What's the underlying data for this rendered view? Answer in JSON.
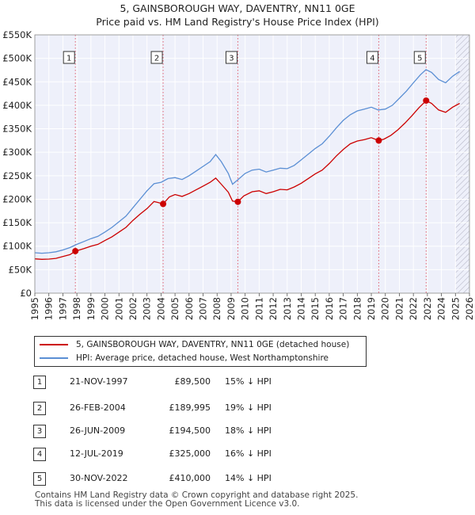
{
  "chart_data": {
    "type": "line",
    "title": "5, GAINSBOROUGH WAY, DAVENTRY, NN11 0GE",
    "subtitle": "Price paid vs. HM Land Registry's House Price Index (HPI)",
    "x_range": [
      1995,
      2026
    ],
    "ylim": [
      0,
      550000
    ],
    "y_ticks": [
      {
        "value": 0,
        "label": "£0"
      },
      {
        "value": 50000,
        "label": "£50K"
      },
      {
        "value": 100000,
        "label": "£100K"
      },
      {
        "value": 150000,
        "label": "£150K"
      },
      {
        "value": 200000,
        "label": "£200K"
      },
      {
        "value": 250000,
        "label": "£250K"
      },
      {
        "value": 300000,
        "label": "£300K"
      },
      {
        "value": 350000,
        "label": "£350K"
      },
      {
        "value": 400000,
        "label": "£400K"
      },
      {
        "value": 450000,
        "label": "£450K"
      },
      {
        "value": 500000,
        "label": "£500K"
      },
      {
        "value": 550000,
        "label": "£550K"
      }
    ],
    "x_ticks": [
      "1995",
      "1996",
      "1997",
      "1998",
      "1999",
      "2000",
      "2001",
      "2002",
      "2003",
      "2004",
      "2005",
      "2006",
      "2007",
      "2008",
      "2009",
      "2010",
      "2011",
      "2012",
      "2013",
      "2014",
      "2015",
      "2016",
      "2017",
      "2018",
      "2019",
      "2020",
      "2021",
      "2022",
      "2023",
      "2024",
      "2025",
      "2026"
    ],
    "hatch_from": 2025.0,
    "series": [
      {
        "name": "5, GAINSBOROUGH WAY, DAVENTRY, NN11 0GE (detached house)",
        "color": "#cc0000",
        "points": [
          [
            1995.0,
            73000
          ],
          [
            1995.5,
            72000
          ],
          [
            1996.0,
            72500
          ],
          [
            1996.5,
            74000
          ],
          [
            1997.0,
            78000
          ],
          [
            1997.5,
            82000
          ],
          [
            1997.9,
            89500
          ],
          [
            1998.5,
            95000
          ],
          [
            1999.0,
            100000
          ],
          [
            1999.5,
            104000
          ],
          [
            2000.0,
            112000
          ],
          [
            2000.5,
            120000
          ],
          [
            2001.0,
            130000
          ],
          [
            2001.5,
            140000
          ],
          [
            2002.0,
            155000
          ],
          [
            2002.5,
            168000
          ],
          [
            2003.0,
            180000
          ],
          [
            2003.5,
            195000
          ],
          [
            2003.8,
            193000
          ],
          [
            2004.15,
            189995
          ],
          [
            2004.6,
            205000
          ],
          [
            2005.0,
            210000
          ],
          [
            2005.5,
            206000
          ],
          [
            2006.0,
            212000
          ],
          [
            2006.5,
            220000
          ],
          [
            2007.0,
            228000
          ],
          [
            2007.5,
            236000
          ],
          [
            2007.9,
            245000
          ],
          [
            2008.3,
            232000
          ],
          [
            2008.8,
            215000
          ],
          [
            2009.1,
            196000
          ],
          [
            2009.48,
            194500
          ],
          [
            2009.9,
            207000
          ],
          [
            2010.5,
            216000
          ],
          [
            2011.0,
            218000
          ],
          [
            2011.5,
            212000
          ],
          [
            2012.0,
            216000
          ],
          [
            2012.5,
            221000
          ],
          [
            2013.0,
            220000
          ],
          [
            2013.5,
            226000
          ],
          [
            2014.0,
            234000
          ],
          [
            2014.5,
            244000
          ],
          [
            2015.0,
            254000
          ],
          [
            2015.5,
            262000
          ],
          [
            2016.0,
            276000
          ],
          [
            2016.5,
            292000
          ],
          [
            2017.0,
            306000
          ],
          [
            2017.5,
            318000
          ],
          [
            2018.0,
            324000
          ],
          [
            2018.5,
            327000
          ],
          [
            2019.0,
            331000
          ],
          [
            2019.53,
            325000
          ],
          [
            2019.9,
            328000
          ],
          [
            2020.4,
            336000
          ],
          [
            2020.9,
            348000
          ],
          [
            2021.4,
            362000
          ],
          [
            2021.9,
            378000
          ],
          [
            2022.4,
            395000
          ],
          [
            2022.91,
            410000
          ],
          [
            2023.3,
            404000
          ],
          [
            2023.8,
            390000
          ],
          [
            2024.3,
            385000
          ],
          [
            2024.8,
            396000
          ],
          [
            2025.3,
            404000
          ]
        ]
      },
      {
        "name": "HPI: Average price, detached house, West Northamptonshire",
        "color": "#5b8fd4",
        "points": [
          [
            1995.0,
            86000
          ],
          [
            1995.5,
            85000
          ],
          [
            1996.0,
            86000
          ],
          [
            1996.5,
            88000
          ],
          [
            1997.0,
            92000
          ],
          [
            1997.5,
            97000
          ],
          [
            1998.0,
            104000
          ],
          [
            1998.5,
            110000
          ],
          [
            1999.0,
            116000
          ],
          [
            1999.5,
            121000
          ],
          [
            2000.0,
            130000
          ],
          [
            2000.5,
            140000
          ],
          [
            2001.0,
            152000
          ],
          [
            2001.5,
            164000
          ],
          [
            2002.0,
            182000
          ],
          [
            2002.5,
            200000
          ],
          [
            2003.0,
            218000
          ],
          [
            2003.5,
            233000
          ],
          [
            2004.0,
            236000
          ],
          [
            2004.5,
            244000
          ],
          [
            2005.0,
            246000
          ],
          [
            2005.5,
            242000
          ],
          [
            2006.0,
            250000
          ],
          [
            2006.5,
            260000
          ],
          [
            2007.0,
            270000
          ],
          [
            2007.5,
            280000
          ],
          [
            2007.9,
            295000
          ],
          [
            2008.3,
            280000
          ],
          [
            2008.8,
            255000
          ],
          [
            2009.1,
            232000
          ],
          [
            2009.5,
            242000
          ],
          [
            2010.0,
            255000
          ],
          [
            2010.5,
            262000
          ],
          [
            2011.0,
            264000
          ],
          [
            2011.5,
            258000
          ],
          [
            2012.0,
            262000
          ],
          [
            2012.5,
            266000
          ],
          [
            2013.0,
            265000
          ],
          [
            2013.5,
            272000
          ],
          [
            2014.0,
            284000
          ],
          [
            2014.5,
            296000
          ],
          [
            2015.0,
            308000
          ],
          [
            2015.5,
            318000
          ],
          [
            2016.0,
            334000
          ],
          [
            2016.5,
            352000
          ],
          [
            2017.0,
            368000
          ],
          [
            2017.5,
            380000
          ],
          [
            2018.0,
            388000
          ],
          [
            2018.5,
            392000
          ],
          [
            2019.0,
            396000
          ],
          [
            2019.5,
            390000
          ],
          [
            2020.0,
            392000
          ],
          [
            2020.5,
            400000
          ],
          [
            2021.0,
            415000
          ],
          [
            2021.5,
            430000
          ],
          [
            2022.0,
            448000
          ],
          [
            2022.5,
            465000
          ],
          [
            2022.9,
            476000
          ],
          [
            2023.3,
            470000
          ],
          [
            2023.8,
            455000
          ],
          [
            2024.3,
            448000
          ],
          [
            2024.8,
            462000
          ],
          [
            2025.3,
            472000
          ]
        ]
      }
    ],
    "sales": [
      {
        "id": "1",
        "x": 1997.89,
        "value": 89500
      },
      {
        "id": "2",
        "x": 2004.15,
        "value": 189995
      },
      {
        "id": "3",
        "x": 2009.48,
        "value": 194500
      },
      {
        "id": "4",
        "x": 2019.53,
        "value": 325000
      },
      {
        "id": "5",
        "x": 2022.91,
        "value": 410000
      }
    ]
  },
  "legend": {
    "property_label": "5, GAINSBOROUGH WAY, DAVENTRY, NN11 0GE (detached house)",
    "hpi_label": "HPI: Average price, detached house, West Northamptonshire"
  },
  "sales_table": [
    {
      "num": "1",
      "date": "21-NOV-1997",
      "price": "£89,500",
      "hpi": "15% ↓ HPI"
    },
    {
      "num": "2",
      "date": "26-FEB-2004",
      "price": "£189,995",
      "hpi": "19% ↓ HPI"
    },
    {
      "num": "3",
      "date": "26-JUN-2009",
      "price": "£194,500",
      "hpi": "18% ↓ HPI"
    },
    {
      "num": "4",
      "date": "12-JUL-2019",
      "price": "£325,000",
      "hpi": "16% ↓ HPI"
    },
    {
      "num": "5",
      "date": "30-NOV-2022",
      "price": "£410,000",
      "hpi": "14% ↓ HPI"
    }
  ],
  "footer": {
    "line1": "Contains HM Land Registry data © Crown copyright and database right 2025.",
    "line2": "This data is licensed under the Open Government Licence v3.0."
  },
  "colors": {
    "property": "#cc0000",
    "hpi": "#5b8fd4",
    "plot_bg": "#eef0fa",
    "guide": "#e06070"
  }
}
